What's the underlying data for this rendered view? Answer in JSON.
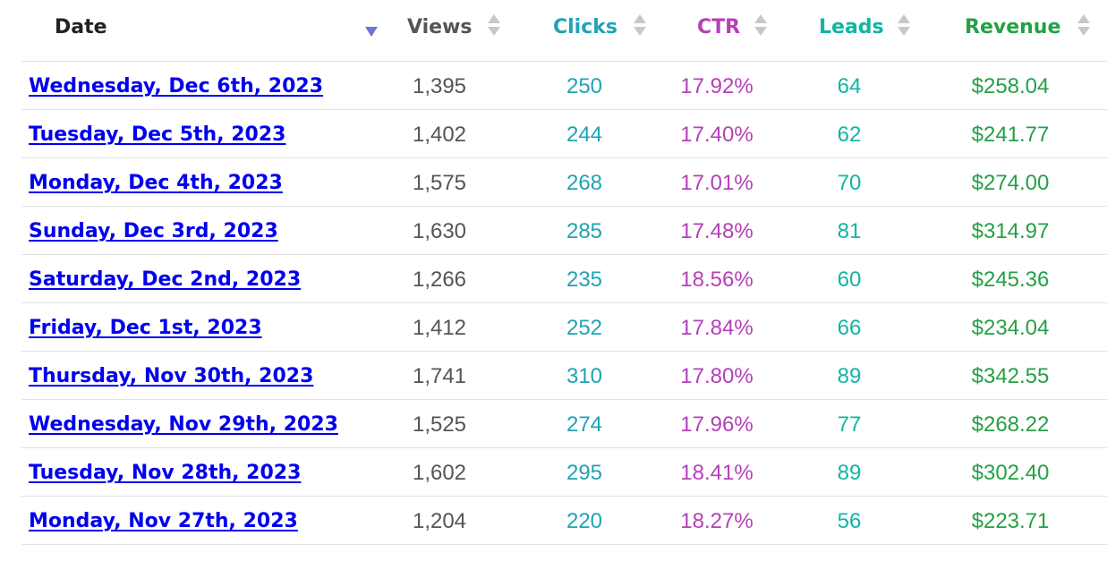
{
  "colors": {
    "views": "#555555",
    "clicks": "#1fa3b5",
    "ctr": "#b540b8",
    "leads": "#12b4a6",
    "revenue": "#24a046",
    "date_link": "#0000ee",
    "date_header": "#222222",
    "sort_active": "#7073d8",
    "sort_inactive": "#c8c8c8"
  },
  "headers": {
    "date": "Date",
    "views": "Views",
    "clicks": "Clicks",
    "ctr": "CTR",
    "leads": "Leads",
    "revenue": "Revenue"
  },
  "sort": {
    "column": "Date",
    "direction": "descending"
  },
  "rows": [
    {
      "date": "Wednesday, Dec 6th, 2023",
      "views": "1,395",
      "clicks": "250",
      "ctr": "17.92%",
      "leads": "64",
      "revenue": "$258.04"
    },
    {
      "date": "Tuesday, Dec 5th, 2023",
      "views": "1,402",
      "clicks": "244",
      "ctr": "17.40%",
      "leads": "62",
      "revenue": "$241.77"
    },
    {
      "date": "Monday, Dec 4th, 2023",
      "views": "1,575",
      "clicks": "268",
      "ctr": "17.01%",
      "leads": "70",
      "revenue": "$274.00"
    },
    {
      "date": "Sunday, Dec 3rd, 2023",
      "views": "1,630",
      "clicks": "285",
      "ctr": "17.48%",
      "leads": "81",
      "revenue": "$314.97"
    },
    {
      "date": "Saturday, Dec 2nd, 2023",
      "views": "1,266",
      "clicks": "235",
      "ctr": "18.56%",
      "leads": "60",
      "revenue": "$245.36"
    },
    {
      "date": "Friday, Dec 1st, 2023",
      "views": "1,412",
      "clicks": "252",
      "ctr": "17.84%",
      "leads": "66",
      "revenue": "$234.04"
    },
    {
      "date": "Thursday, Nov 30th, 2023",
      "views": "1,741",
      "clicks": "310",
      "ctr": "17.80%",
      "leads": "89",
      "revenue": "$342.55"
    },
    {
      "date": "Wednesday, Nov 29th, 2023",
      "views": "1,525",
      "clicks": "274",
      "ctr": "17.96%",
      "leads": "77",
      "revenue": "$268.22"
    },
    {
      "date": "Tuesday, Nov 28th, 2023",
      "views": "1,602",
      "clicks": "295",
      "ctr": "18.41%",
      "leads": "89",
      "revenue": "$302.40"
    },
    {
      "date": "Monday, Nov 27th, 2023",
      "views": "1,204",
      "clicks": "220",
      "ctr": "18.27%",
      "leads": "56",
      "revenue": "$223.71"
    }
  ]
}
